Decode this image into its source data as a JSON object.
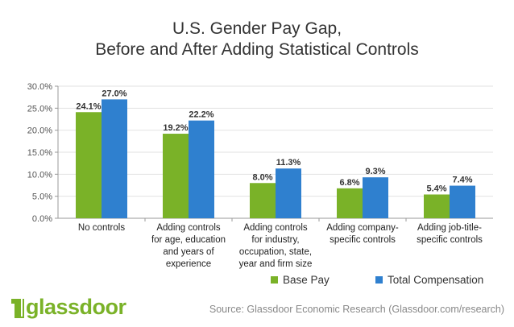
{
  "title_lines": [
    "U.S. Gender Pay Gap,",
    "Before and After Adding Statistical Controls"
  ],
  "colors": {
    "base_pay": "#7ab228",
    "total_compensation": "#2f80cf"
  },
  "chart_data": {
    "type": "bar",
    "title": "U.S. Gender Pay Gap, Before and After Adding Statistical Controls",
    "categories": [
      [
        "No controls"
      ],
      [
        "Adding controls",
        "for age, education",
        "and years of",
        "experience"
      ],
      [
        "Adding controls",
        "for industry,",
        "occupation, state,",
        "year and firm size"
      ],
      [
        "Adding company-",
        "specific controls"
      ],
      [
        "Adding job-title-",
        "specific controls"
      ]
    ],
    "series": [
      {
        "name": "Base Pay",
        "values": [
          24.1,
          19.2,
          8.0,
          6.8,
          5.4
        ],
        "labels": [
          "24.1%",
          "19.2%",
          "8.0%",
          "6.8%",
          "5.4%"
        ]
      },
      {
        "name": "Total Compensation",
        "values": [
          27.0,
          22.2,
          11.3,
          9.3,
          7.4
        ],
        "labels": [
          "27.0%",
          "22.2%",
          "11.3%",
          "9.3%",
          "7.4%"
        ]
      }
    ],
    "ylim": [
      0,
      30
    ],
    "yticks": [
      "0.0%",
      "5.0%",
      "10.0%",
      "15.0%",
      "20.0%",
      "25.0%",
      "30.0%"
    ],
    "grid": true,
    "legend": "bottom-right"
  },
  "legend": {
    "base_pay": "Base Pay",
    "total_compensation": "Total Compensation"
  },
  "logo": "glassdoor",
  "source": "Source: Glassdoor Economic Research (Glassdoor.com/research)"
}
